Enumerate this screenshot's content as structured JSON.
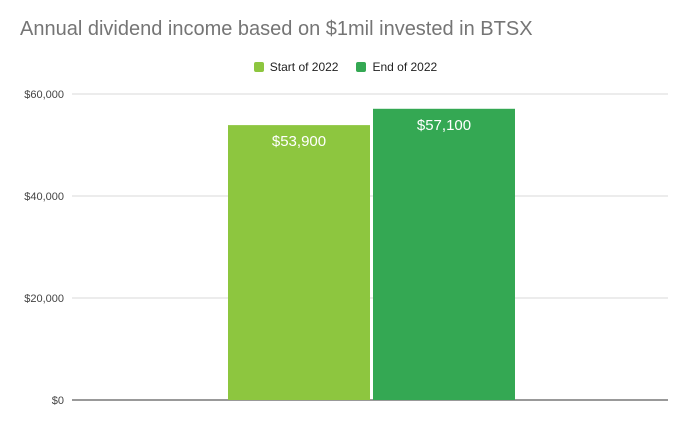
{
  "chart_data": {
    "type": "bar",
    "title": "Annual dividend income based on $1mil invested in BTSX",
    "categories": [
      ""
    ],
    "series": [
      {
        "name": "Start of 2022",
        "values": [
          53900
        ],
        "color": "#8dc63f",
        "data_label": "$53,900"
      },
      {
        "name": "End of 2022",
        "values": [
          57100
        ],
        "color": "#34a853",
        "data_label": "$57,100"
      }
    ],
    "y_ticks": [
      {
        "value": 0,
        "label": "$0"
      },
      {
        "value": 20000,
        "label": "$20,000"
      },
      {
        "value": 40000,
        "label": "$40,000"
      },
      {
        "value": 60000,
        "label": "$60,000"
      }
    ],
    "ylim": [
      0,
      60000
    ],
    "grid": true,
    "legend_position": "top"
  }
}
